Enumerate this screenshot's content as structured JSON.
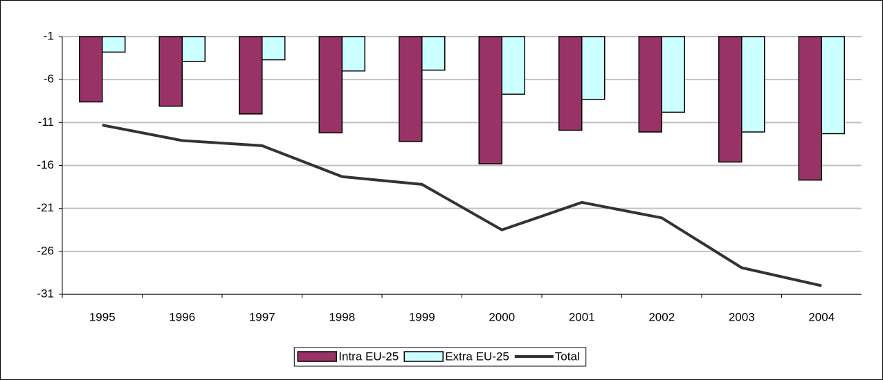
{
  "chart_data": {
    "type": "bar",
    "categories": [
      "1995",
      "1996",
      "1997",
      "1998",
      "1999",
      "2000",
      "2001",
      "2002",
      "2003",
      "2004"
    ],
    "series": [
      {
        "name": "Intra EU-25",
        "color": "#993366",
        "values": [
          -8.6,
          -9.1,
          -10.0,
          -12.2,
          -13.2,
          -15.8,
          -11.9,
          -12.1,
          -15.6,
          -17.7
        ]
      },
      {
        "name": "Extra EU-25",
        "color": "#ccffff",
        "values": [
          -2.8,
          -3.9,
          -3.7,
          -5.0,
          -4.9,
          -7.7,
          -8.3,
          -9.8,
          -12.1,
          -12.3
        ]
      },
      {
        "name": "Total",
        "color": "#333333",
        "type": "line",
        "values": [
          -11.3,
          -13.1,
          -13.7,
          -17.3,
          -18.2,
          -23.5,
          -20.3,
          -22.1,
          -27.9,
          -30.0
        ]
      }
    ],
    "ylim": [
      -31,
      -1
    ],
    "yticks": [
      -1,
      -6,
      -11,
      -16,
      -21,
      -26,
      -31
    ],
    "grid": true,
    "legend": "bottom"
  }
}
